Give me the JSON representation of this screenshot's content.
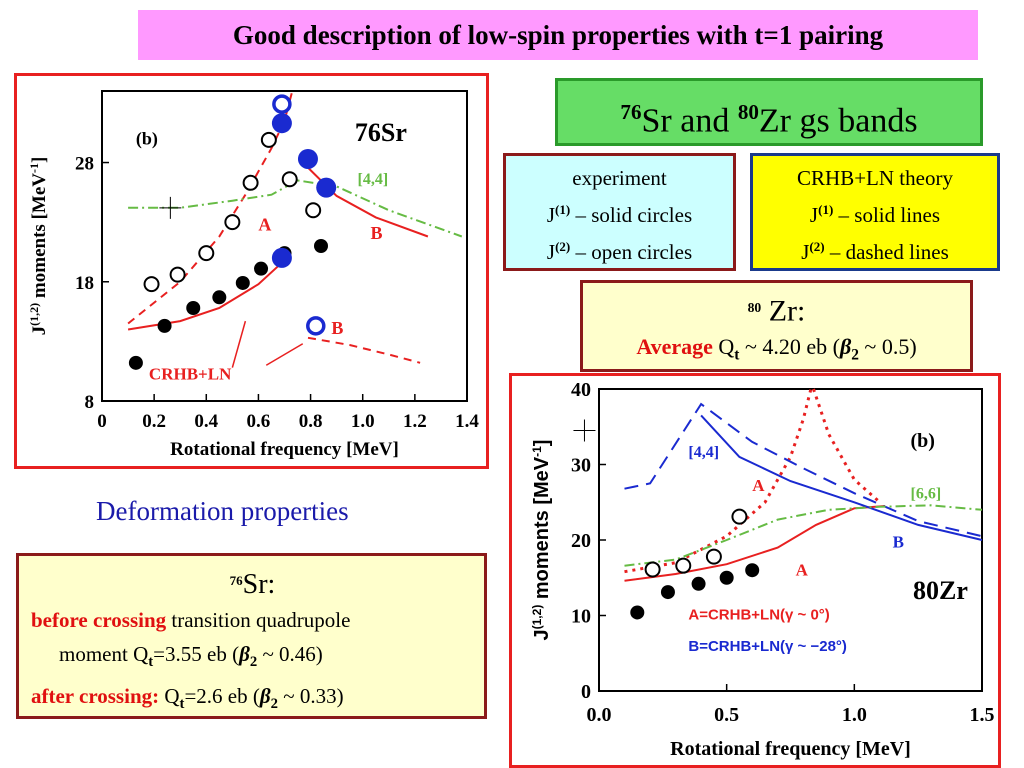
{
  "title": "Good description of low-spin properties with t=1 pairing",
  "gs_bands": {
    "sup1": "76",
    "el1": "Sr and ",
    "sup2": "80",
    "el2": "Zr gs bands"
  },
  "experiment": {
    "line1": "experiment",
    "j1_label": "J",
    "j1_sup": "(1)",
    "j1_text": " – solid circles",
    "j2_label": "J",
    "j2_sup": "(2)",
    "j2_text": " – open circles"
  },
  "theory": {
    "line1": "CRHB+LN theory",
    "j1_label": "J",
    "j1_sup": "(1)",
    "j1_text": " – solid lines",
    "j2_label": "J",
    "j2_sup": "(2)",
    "j2_text": " – dashed lines"
  },
  "zr_box": {
    "sup": "80",
    "el": " Zr:",
    "avg": "Average",
    "q": " Q",
    "q_sub": "t",
    "rest": " ~ 4.20 eb (",
    "beta": "β",
    "beta_sub": "2",
    "beta_rest": " ~ 0.5)"
  },
  "deformation": "Deformation properties",
  "sr_box": {
    "sup": "76",
    "el": "Sr:",
    "before": "before crossing",
    "before_text": " transition quadrupole",
    "moment": "moment Q",
    "q_sub": "t",
    "moment_val": "=3.55 eb (",
    "beta": "β",
    "beta_sub": "2",
    "beta_val": " ~ 0.46)",
    "after": "after crossing:",
    "after_q": " Q",
    "after_sub": "t",
    "after_val": "=2.6 eb (",
    "after_beta": "β",
    "after_beta_sub": "2",
    "after_beta_val": " ~ 0.33)"
  },
  "chart_data": [
    {
      "type": "scatter",
      "panel_label": "(b)",
      "nucleus": "76Sr",
      "xlabel": "Rotational  frequency  [MeV]",
      "ylabel": "J(1,2)  moments [MeV-1]",
      "xlim": [
        0,
        1.4
      ],
      "ylim": [
        8,
        34
      ],
      "xticks": [
        0,
        0.2,
        0.4,
        0.6,
        0.8,
        1.0,
        1.2,
        1.4
      ],
      "yticks": [
        8,
        18,
        28
      ],
      "annotations": [
        "A",
        "B",
        "B",
        "[4,4]",
        "CRHB+LN"
      ],
      "series": [
        {
          "name": "J(1) exp",
          "style": "solid-black",
          "points": [
            [
              0.13,
              11.2
            ],
            [
              0.24,
              14.3
            ],
            [
              0.35,
              15.8
            ],
            [
              0.45,
              16.7
            ],
            [
              0.54,
              17.9
            ],
            [
              0.61,
              19.1
            ],
            [
              0.7,
              20.4
            ],
            [
              0.84,
              21.0
            ]
          ]
        },
        {
          "name": "J(2) exp",
          "style": "open-black",
          "points": [
            [
              0.19,
              17.8
            ],
            [
              0.29,
              18.6
            ],
            [
              0.4,
              20.4
            ],
            [
              0.5,
              23.0
            ],
            [
              0.57,
              26.3
            ],
            [
              0.64,
              29.9
            ],
            [
              0.72,
              26.6
            ],
            [
              0.81,
              24.0
            ]
          ]
        },
        {
          "name": "J(1) exp band",
          "style": "solid-blue",
          "points": [
            [
              0.69,
              20.0
            ],
            [
              0.69,
              31.3
            ],
            [
              0.79,
              28.3
            ],
            [
              0.86,
              25.9
            ]
          ]
        },
        {
          "name": "J(2) exp band",
          "style": "open-blue",
          "points": [
            [
              0.69,
              32.9
            ],
            [
              0.82,
              14.3
            ]
          ]
        },
        {
          "name": "J(1) A",
          "style": "red-solid",
          "points": [
            [
              0.1,
              14.0
            ],
            [
              0.3,
              14.7
            ],
            [
              0.45,
              15.8
            ],
            [
              0.6,
              17.8
            ],
            [
              0.7,
              19.8
            ]
          ]
        },
        {
          "name": "J(2) A",
          "style": "red-dashed",
          "points": [
            [
              0.1,
              14.5
            ],
            [
              0.3,
              18.0
            ],
            [
              0.45,
              21.8
            ],
            [
              0.55,
              25.3
            ],
            [
              0.65,
              29.2
            ],
            [
              0.7,
              31.5
            ],
            [
              0.73,
              34.0
            ]
          ]
        },
        {
          "name": "J(1) B",
          "style": "red-solid",
          "points": [
            [
              0.77,
              28.0
            ],
            [
              0.9,
              25.2
            ],
            [
              1.05,
              23.4
            ],
            [
              1.25,
              21.8
            ]
          ]
        },
        {
          "name": "J(2) B",
          "style": "red-dashed",
          "points": [
            [
              0.79,
              13.3
            ],
            [
              0.95,
              12.7
            ],
            [
              1.1,
              11.9
            ],
            [
              1.22,
              11.2
            ]
          ]
        },
        {
          "name": "[4,4]",
          "style": "green-dashdot",
          "points": [
            [
              0.1,
              24.2
            ],
            [
              0.3,
              24.2
            ],
            [
              0.5,
              24.8
            ],
            [
              0.65,
              25.3
            ],
            [
              0.75,
              26.5
            ],
            [
              0.9,
              26.0
            ],
            [
              1.1,
              24.0
            ],
            [
              1.38,
              21.8
            ]
          ]
        }
      ]
    },
    {
      "type": "scatter",
      "panel_label": "(b)",
      "nucleus": "80Zr",
      "xlabel": "Rotational  frequency  [MeV]",
      "ylabel": "J(1,2)  moments [MeV-1]",
      "xlim": [
        0,
        1.5
      ],
      "ylim": [
        0,
        40
      ],
      "xticks": [
        0.0,
        0.5,
        1.0,
        1.5
      ],
      "yticks": [
        0,
        10,
        20,
        30,
        40
      ],
      "annotations": [
        "[4,4]",
        "A",
        "[6,6]",
        "B",
        "A",
        "A=CRHB+LN(γ ~ 0°)",
        "B=CRHB+LN(γ ~ −28°)"
      ],
      "series": [
        {
          "name": "J(1) exp",
          "style": "solid-black",
          "points": [
            [
              0.15,
              10.4
            ],
            [
              0.27,
              13.1
            ],
            [
              0.39,
              14.2
            ],
            [
              0.5,
              15.0
            ],
            [
              0.6,
              16.0
            ]
          ]
        },
        {
          "name": "J(2) exp",
          "style": "open-black",
          "points": [
            [
              0.21,
              16.1
            ],
            [
              0.33,
              16.6
            ],
            [
              0.45,
              17.8
            ],
            [
              0.55,
              23.1
            ]
          ]
        },
        {
          "name": "A J(1)",
          "style": "red-solid",
          "points": [
            [
              0.1,
              14.6
            ],
            [
              0.3,
              15.5
            ],
            [
              0.5,
              16.8
            ],
            [
              0.7,
              19.0
            ],
            [
              0.85,
              22.0
            ],
            [
              1.0,
              24.2
            ],
            [
              1.12,
              24.5
            ]
          ]
        },
        {
          "name": "A J(2)",
          "style": "red-dotted",
          "points": [
            [
              0.1,
              15.8
            ],
            [
              0.3,
              17.0
            ],
            [
              0.5,
              20.5
            ],
            [
              0.65,
              25.0
            ],
            [
              0.75,
              31.0
            ],
            [
              0.8,
              36.0
            ],
            [
              0.83,
              40.0
            ]
          ]
        },
        {
          "name": "A J(2) falling",
          "style": "red-dotted",
          "points": [
            [
              0.84,
              40.0
            ],
            [
              0.9,
              34.0
            ],
            [
              1.0,
              28.0
            ],
            [
              1.1,
              25.0
            ]
          ]
        },
        {
          "name": "B J(1)",
          "style": "blue-solid",
          "points": [
            [
              0.4,
              36.5
            ],
            [
              0.55,
              31.0
            ],
            [
              0.75,
              27.8
            ],
            [
              1.0,
              25.0
            ],
            [
              1.25,
              22.0
            ],
            [
              1.5,
              20.0
            ]
          ]
        },
        {
          "name": "B J(2)",
          "style": "blue-dashed",
          "points": [
            [
              0.1,
              26.8
            ],
            [
              0.2,
              27.5
            ],
            [
              0.4,
              38.0
            ],
            [
              0.6,
              33.0
            ],
            [
              0.8,
              29.5
            ],
            [
              1.0,
              26.2
            ],
            [
              1.25,
              22.5
            ],
            [
              1.5,
              20.5
            ]
          ]
        },
        {
          "name": "[6,6]",
          "style": "green-dashdot",
          "points": [
            [
              0.1,
              16.6
            ],
            [
              0.3,
              17.4
            ],
            [
              0.5,
              20.0
            ],
            [
              0.7,
              22.7
            ],
            [
              0.9,
              24.0
            ],
            [
              1.1,
              24.4
            ],
            [
              1.3,
              24.6
            ],
            [
              1.5,
              24.0
            ]
          ]
        }
      ]
    }
  ]
}
